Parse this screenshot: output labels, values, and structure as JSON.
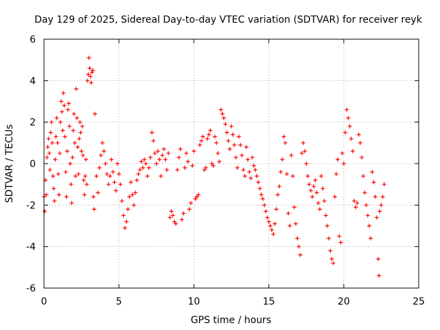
{
  "chart_data": {
    "type": "scatter",
    "title": "Day 129 of 2025, Sidereal Day-to-day VTEC variation (SDTVAR) for receiver reyk",
    "xlabel": "GPS time / hours",
    "ylabel": "SDTVAR / TECUs",
    "xlim": [
      0,
      25
    ],
    "ylim": [
      -6,
      6
    ],
    "xticks": [
      0,
      5,
      10,
      15,
      20,
      25
    ],
    "yticks": [
      -6,
      -4,
      -2,
      0,
      2,
      4,
      6
    ],
    "xtick_labels": [
      "0",
      "5",
      "10",
      "15",
      "20",
      "25"
    ],
    "ytick_labels": [
      "-6",
      "-4",
      "-2",
      "0",
      "2",
      "4",
      "6"
    ],
    "grid": true,
    "marker": "+",
    "marker_color": "#ff0000",
    "series": [
      {
        "name": "SDTVAR",
        "points": [
          [
            0.0,
            -1.6
          ],
          [
            0.05,
            -2.3
          ],
          [
            0.1,
            -0.8
          ],
          [
            0.15,
            -1.5
          ],
          [
            0.2,
            0.3
          ],
          [
            0.25,
            0.8
          ],
          [
            0.3,
            1.2
          ],
          [
            0.35,
            0.5
          ],
          [
            0.4,
            -0.3
          ],
          [
            0.45,
            1.5
          ],
          [
            0.5,
            2.0
          ],
          [
            0.55,
            1.0
          ],
          [
            0.6,
            -0.6
          ],
          [
            0.65,
            -1.2
          ],
          [
            0.7,
            -1.8
          ],
          [
            0.75,
            0.2
          ],
          [
            0.8,
            1.3
          ],
          [
            0.85,
            2.2
          ],
          [
            0.9,
            1.0
          ],
          [
            0.95,
            -0.5
          ],
          [
            1.0,
            -1.5
          ],
          [
            1.05,
            0.5
          ],
          [
            1.1,
            2.0
          ],
          [
            1.15,
            3.0
          ],
          [
            1.2,
            2.5
          ],
          [
            1.25,
            1.6
          ],
          [
            1.3,
            3.4
          ],
          [
            1.35,
            2.8
          ],
          [
            1.4,
            1.3
          ],
          [
            1.45,
            -0.4
          ],
          [
            1.5,
            -1.6
          ],
          [
            1.55,
            0.6
          ],
          [
            1.6,
            2.6
          ],
          [
            1.65,
            2.9
          ],
          [
            1.7,
            1.8
          ],
          [
            1.75,
            0.0
          ],
          [
            1.8,
            -1.0
          ],
          [
            1.85,
            -1.9
          ],
          [
            1.9,
            0.3
          ],
          [
            1.95,
            1.6
          ],
          [
            2.0,
            2.4
          ],
          [
            2.05,
            1.0
          ],
          [
            2.1,
            -0.6
          ],
          [
            2.15,
            3.6
          ],
          [
            2.2,
            2.2
          ],
          [
            2.25,
            0.8
          ],
          [
            2.3,
            -0.5
          ],
          [
            2.35,
            1.2
          ],
          [
            2.4,
            2.0
          ],
          [
            2.45,
            1.5
          ],
          [
            2.5,
            0.6
          ],
          [
            2.55,
            1.8
          ],
          [
            2.6,
            0.4
          ],
          [
            2.65,
            -0.8
          ],
          [
            2.7,
            -1.5
          ],
          [
            2.75,
            -0.6
          ],
          [
            2.8,
            0.2
          ],
          [
            2.85,
            -1.0
          ],
          [
            2.9,
            4.0
          ],
          [
            2.95,
            4.3
          ],
          [
            3.0,
            5.1
          ],
          [
            3.05,
            4.6
          ],
          [
            3.1,
            4.2
          ],
          [
            3.15,
            3.9
          ],
          [
            3.2,
            4.4
          ],
          [
            3.25,
            4.5
          ],
          [
            3.3,
            -1.6
          ],
          [
            3.35,
            -2.2
          ],
          [
            3.4,
            2.4
          ],
          [
            3.5,
            -0.6
          ],
          [
            3.6,
            -1.4
          ],
          [
            3.7,
            -0.2
          ],
          [
            3.8,
            0.4
          ],
          [
            3.9,
            1.0
          ],
          [
            4.0,
            0.6
          ],
          [
            4.1,
            0.0
          ],
          [
            4.2,
            -0.5
          ],
          [
            4.3,
            -1.0
          ],
          [
            4.4,
            -0.6
          ],
          [
            4.5,
            0.2
          ],
          [
            4.6,
            -0.4
          ],
          [
            4.7,
            -0.9
          ],
          [
            4.8,
            -1.3
          ],
          [
            4.9,
            0.0
          ],
          [
            5.0,
            -0.5
          ],
          [
            5.1,
            -1.0
          ],
          [
            5.2,
            -1.8
          ],
          [
            5.3,
            -2.5
          ],
          [
            5.4,
            -3.1
          ],
          [
            5.5,
            -2.8
          ],
          [
            5.6,
            -2.2
          ],
          [
            5.7,
            -1.6
          ],
          [
            5.8,
            -0.9
          ],
          [
            5.9,
            -1.5
          ],
          [
            6.0,
            -2.0
          ],
          [
            6.1,
            -1.4
          ],
          [
            6.2,
            -0.8
          ],
          [
            6.3,
            -0.5
          ],
          [
            6.4,
            -0.3
          ],
          [
            6.5,
            0.1
          ],
          [
            6.6,
            -0.2
          ],
          [
            6.7,
            0.2
          ],
          [
            6.8,
            0.0
          ],
          [
            6.9,
            -0.6
          ],
          [
            7.0,
            -0.2
          ],
          [
            7.1,
            0.3
          ],
          [
            7.2,
            1.5
          ],
          [
            7.3,
            1.1
          ],
          [
            7.4,
            0.5
          ],
          [
            7.5,
            0.0
          ],
          [
            7.6,
            0.6
          ],
          [
            7.7,
            0.2
          ],
          [
            7.8,
            -0.6
          ],
          [
            7.9,
            0.4
          ],
          [
            8.0,
            0.7
          ],
          [
            8.1,
            0.2
          ],
          [
            8.2,
            -0.3
          ],
          [
            8.3,
            0.5
          ],
          [
            8.4,
            -2.6
          ],
          [
            8.5,
            -2.3
          ],
          [
            8.6,
            -2.5
          ],
          [
            8.7,
            -2.8
          ],
          [
            8.8,
            -2.9
          ],
          [
            8.9,
            -0.3
          ],
          [
            9.0,
            0.3
          ],
          [
            9.1,
            0.7
          ],
          [
            9.2,
            -2.7
          ],
          [
            9.3,
            -2.4
          ],
          [
            9.4,
            -0.2
          ],
          [
            9.5,
            0.5
          ],
          [
            9.6,
            0.1
          ],
          [
            9.7,
            -2.2
          ],
          [
            9.8,
            -1.9
          ],
          [
            9.9,
            -0.1
          ],
          [
            10.0,
            0.6
          ],
          [
            10.1,
            -1.7
          ],
          [
            10.2,
            -1.6
          ],
          [
            10.3,
            -1.5
          ],
          [
            10.4,
            0.9
          ],
          [
            10.5,
            1.1
          ],
          [
            10.6,
            1.3
          ],
          [
            10.7,
            -0.3
          ],
          [
            10.8,
            -0.2
          ],
          [
            10.9,
            1.2
          ],
          [
            11.0,
            1.4
          ],
          [
            11.1,
            1.6
          ],
          [
            11.2,
            0.0
          ],
          [
            11.3,
            -0.1
          ],
          [
            11.4,
            1.3
          ],
          [
            11.5,
            1.0
          ],
          [
            11.6,
            0.5
          ],
          [
            11.7,
            0.1
          ],
          [
            11.8,
            2.6
          ],
          [
            11.9,
            2.4
          ],
          [
            12.0,
            2.2
          ],
          [
            12.1,
            1.9
          ],
          [
            12.2,
            1.5
          ],
          [
            12.3,
            1.1
          ],
          [
            12.4,
            0.7
          ],
          [
            12.5,
            1.8
          ],
          [
            12.6,
            1.4
          ],
          [
            12.7,
            0.9
          ],
          [
            12.8,
            0.3
          ],
          [
            12.9,
            -0.2
          ],
          [
            13.0,
            1.3
          ],
          [
            13.1,
            0.9
          ],
          [
            13.2,
            0.4
          ],
          [
            13.3,
            -0.3
          ],
          [
            13.4,
            -0.6
          ],
          [
            13.5,
            0.8
          ],
          [
            13.6,
            0.2
          ],
          [
            13.7,
            -0.4
          ],
          [
            13.8,
            -0.7
          ],
          [
            13.9,
            0.3
          ],
          [
            14.0,
            -0.1
          ],
          [
            14.1,
            -0.3
          ],
          [
            14.2,
            -0.6
          ],
          [
            14.3,
            -0.9
          ],
          [
            14.4,
            -1.2
          ],
          [
            14.5,
            -1.5
          ],
          [
            14.6,
            -1.7
          ],
          [
            14.7,
            -2.0
          ],
          [
            14.8,
            -2.3
          ],
          [
            14.9,
            -2.6
          ],
          [
            15.0,
            -2.8
          ],
          [
            15.1,
            -3.0
          ],
          [
            15.2,
            -3.2
          ],
          [
            15.3,
            -3.4
          ],
          [
            15.4,
            -2.9
          ],
          [
            15.5,
            -2.2
          ],
          [
            15.6,
            -1.5
          ],
          [
            15.7,
            -1.1
          ],
          [
            15.8,
            -0.4
          ],
          [
            15.9,
            0.2
          ],
          [
            16.0,
            1.3
          ],
          [
            16.1,
            1.0
          ],
          [
            16.2,
            -0.5
          ],
          [
            16.3,
            -2.4
          ],
          [
            16.4,
            -3.0
          ],
          [
            16.5,
            0.4
          ],
          [
            16.6,
            -0.6
          ],
          [
            16.7,
            -2.1
          ],
          [
            16.8,
            -2.9
          ],
          [
            16.9,
            -3.6
          ],
          [
            17.0,
            -4.0
          ],
          [
            17.1,
            -4.4
          ],
          [
            17.2,
            0.5
          ],
          [
            17.3,
            1.0
          ],
          [
            17.4,
            0.6
          ],
          [
            17.5,
            0.0
          ],
          [
            17.6,
            -0.6
          ],
          [
            17.7,
            -1.0
          ],
          [
            17.8,
            -1.3
          ],
          [
            17.9,
            -1.6
          ],
          [
            18.0,
            -1.1
          ],
          [
            18.1,
            -0.8
          ],
          [
            18.2,
            -1.4
          ],
          [
            18.3,
            -1.9
          ],
          [
            18.4,
            -2.2
          ],
          [
            18.5,
            -0.6
          ],
          [
            18.6,
            -1.2
          ],
          [
            18.7,
            -1.8
          ],
          [
            18.8,
            -2.5
          ],
          [
            18.9,
            -3.0
          ],
          [
            19.0,
            -3.6
          ],
          [
            19.1,
            -4.2
          ],
          [
            19.2,
            -4.6
          ],
          [
            19.3,
            -4.8
          ],
          [
            19.4,
            -1.6
          ],
          [
            19.5,
            -0.5
          ],
          [
            19.6,
            0.2
          ],
          [
            19.7,
            -3.5
          ],
          [
            19.8,
            -3.8
          ],
          [
            19.9,
            0.5
          ],
          [
            20.0,
            0.0
          ],
          [
            20.1,
            1.5
          ],
          [
            20.2,
            2.6
          ],
          [
            20.3,
            2.2
          ],
          [
            20.4,
            1.8
          ],
          [
            20.5,
            1.2
          ],
          [
            20.6,
            0.6
          ],
          [
            20.7,
            -1.8
          ],
          [
            20.8,
            -2.1
          ],
          [
            20.9,
            -1.9
          ],
          [
            21.0,
            1.4
          ],
          [
            21.1,
            1.0
          ],
          [
            21.2,
            0.3
          ],
          [
            21.3,
            -0.6
          ],
          [
            21.4,
            -1.4
          ],
          [
            21.5,
            -2.0
          ],
          [
            21.6,
            -2.5
          ],
          [
            21.7,
            -3.0
          ],
          [
            21.8,
            -3.6
          ],
          [
            21.9,
            -0.4
          ],
          [
            22.0,
            -0.9
          ],
          [
            22.1,
            -1.6
          ],
          [
            22.2,
            -2.6
          ],
          [
            22.3,
            -4.6
          ],
          [
            22.35,
            -5.4
          ],
          [
            22.4,
            -2.3
          ],
          [
            22.5,
            -2.0
          ],
          [
            22.6,
            -1.6
          ],
          [
            22.7,
            -1.0
          ]
        ]
      }
    ]
  }
}
